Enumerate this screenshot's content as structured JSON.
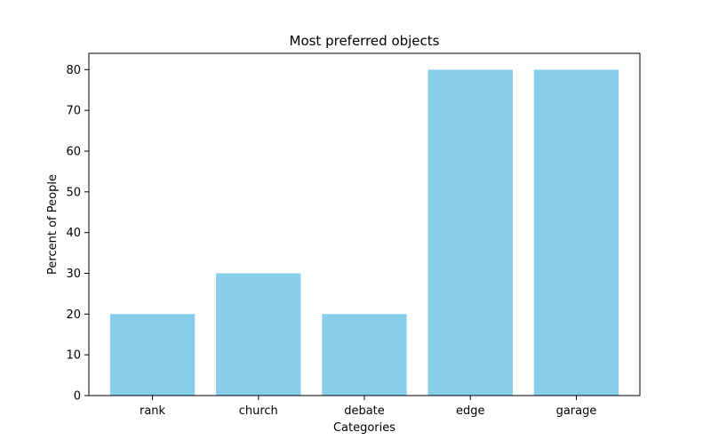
{
  "chart_data": {
    "type": "bar",
    "title": "Most preferred objects",
    "xlabel": "Categories",
    "ylabel": "Percent of People",
    "categories": [
      "rank",
      "church",
      "debate",
      "edge",
      "garage"
    ],
    "values": [
      20,
      30,
      20,
      80,
      80
    ],
    "ylim": [
      0,
      84
    ],
    "yticks": [
      0,
      10,
      20,
      30,
      40,
      50,
      60,
      70,
      80
    ],
    "bar_color": "#87CEEB",
    "grid": false,
    "legend": "none"
  }
}
